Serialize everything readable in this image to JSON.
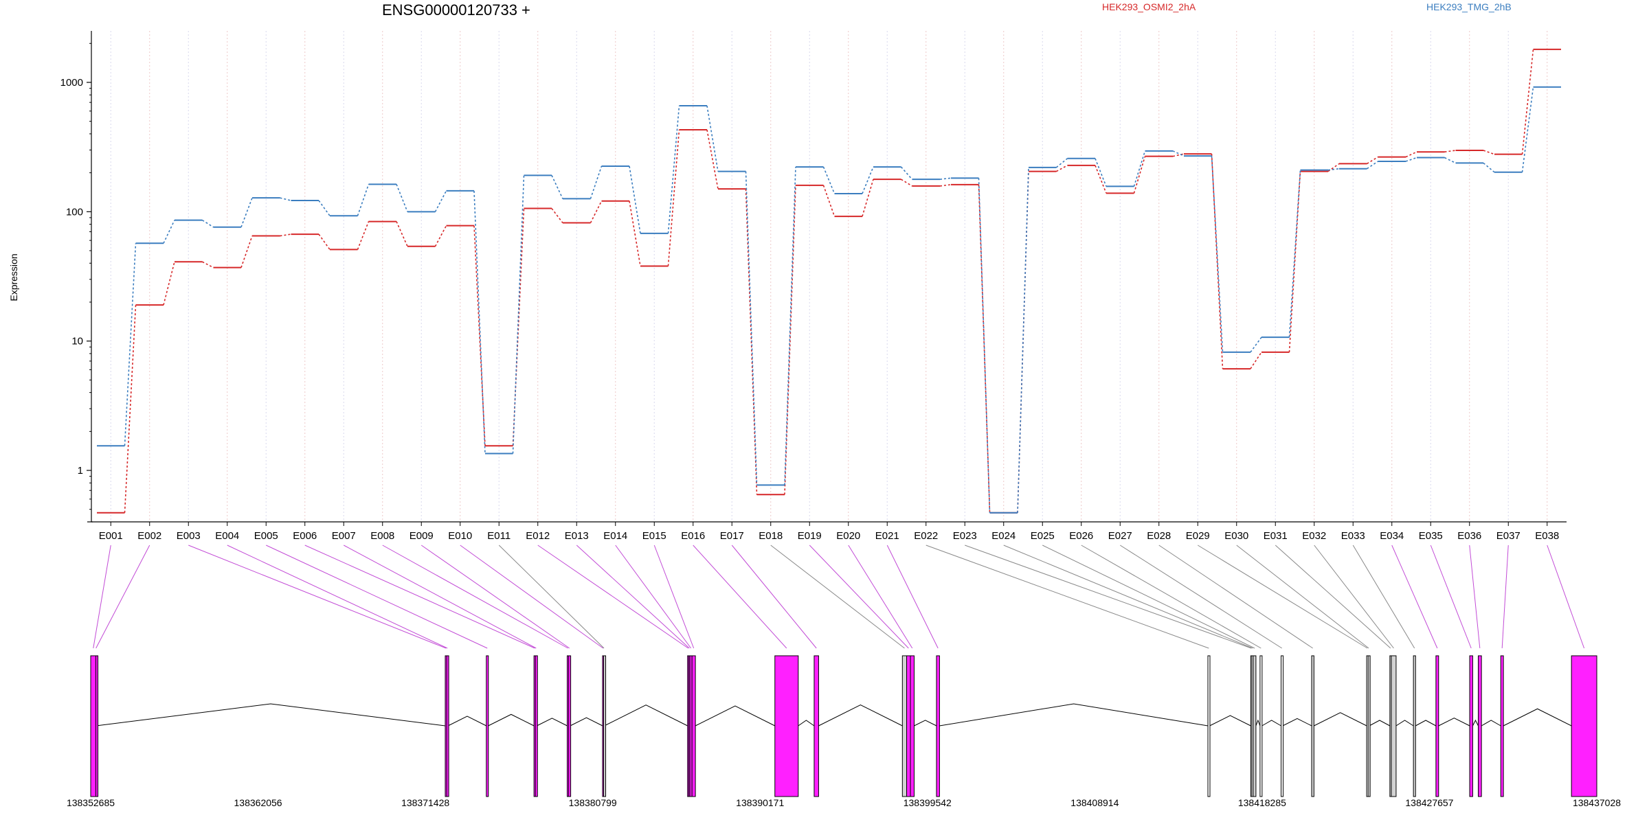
{
  "chart_data": {
    "type": "line",
    "title": "ENSG00000120733 +",
    "xlabel": "",
    "ylabel": "Expression",
    "yscale": "log",
    "ylim": [
      0.4,
      2500
    ],
    "yticks": [
      1,
      10,
      100,
      1000
    ],
    "grid": "vertical dotted at each exon",
    "legend_placement": "top",
    "categories": [
      "E001",
      "E002",
      "E003",
      "E004",
      "E005",
      "E006",
      "E007",
      "E008",
      "E009",
      "E010",
      "E011",
      "E012",
      "E013",
      "E014",
      "E015",
      "E016",
      "E017",
      "E018",
      "E019",
      "E020",
      "E021",
      "E022",
      "E023",
      "E024",
      "E025",
      "E026",
      "E027",
      "E028",
      "E029",
      "E030",
      "E031",
      "E032",
      "E033",
      "E034",
      "E035",
      "E036",
      "E037",
      "E038"
    ],
    "exon_colors": [
      "#ff20ff",
      "#ff20ff",
      "#ff20ff",
      "#ff20ff",
      "#ff20ff",
      "#ff20ff",
      "#ff20ff",
      "#ff20ff",
      "#ff20ff",
      "#ff20ff",
      "#d3d3d3",
      "#ff20ff",
      "#ff20ff",
      "#ff20ff",
      "#ff20ff",
      "#ff20ff",
      "#ff20ff",
      "#d3d3d3",
      "#ff20ff",
      "#ff20ff",
      "#ff20ff",
      "#ffffff",
      "#ffffff",
      "#ffffff",
      "#d3d3d3",
      "#ffffff",
      "#ffffff",
      "#d3d3d3",
      "#ffffff",
      "#d3d3d3",
      "#d3d3d3",
      "#d3d3d3",
      "#d3d3d3",
      "#ff20ff",
      "#ff20ff",
      "#ff20ff",
      "#ff20ff",
      "#ff20ff"
    ],
    "series": [
      {
        "name": "HEK293_OSMI2_2hA",
        "color": "#d62728",
        "values": [
          0.47,
          19,
          41,
          37,
          65,
          67,
          51,
          84,
          54,
          78,
          1.55,
          106,
          82,
          121,
          38,
          430,
          150,
          0.65,
          160,
          92,
          178,
          158,
          162,
          0.47,
          205,
          228,
          139,
          268,
          280,
          6.1,
          8.2,
          205,
          235,
          265,
          290,
          298,
          278,
          1800
        ]
      },
      {
        "name": "HEK293_TMG_2hB",
        "color": "#3a7dbf",
        "values": [
          1.55,
          57,
          86,
          76,
          128,
          122,
          93,
          163,
          100,
          145,
          1.35,
          191,
          126,
          225,
          68,
          660,
          205,
          0.77,
          222,
          138,
          222,
          178,
          182,
          0.47,
          220,
          258,
          157,
          295,
          270,
          8.2,
          10.7,
          210,
          215,
          245,
          262,
          238,
          202,
          920
        ]
      }
    ],
    "genomic_axis": {
      "ticks": [
        "138352685",
        "138362056",
        "138371428",
        "138380799",
        "138390171",
        "138399542",
        "138408914",
        "138418285",
        "138427657",
        "138437028"
      ],
      "range": [
        138352685,
        138437028
      ]
    },
    "exons": [
      {
        "id": "E001",
        "start": 138352685,
        "end": 138352975
      },
      {
        "id": "E002",
        "start": 138352975,
        "end": 138352985
      },
      {
        "id": "E003",
        "start": 138372540,
        "end": 138372620
      },
      {
        "id": "E004",
        "start": 138372620,
        "end": 138372700
      },
      {
        "id": "E005",
        "start": 138374840,
        "end": 138374950
      },
      {
        "id": "E006",
        "start": 138377510,
        "end": 138377590
      },
      {
        "id": "E007",
        "start": 138377590,
        "end": 138377670
      },
      {
        "id": "E008",
        "start": 138379370,
        "end": 138379450
      },
      {
        "id": "E009",
        "start": 138379450,
        "end": 138379540
      },
      {
        "id": "E010",
        "start": 138381350,
        "end": 138381410
      },
      {
        "id": "E011",
        "start": 138381410,
        "end": 138381450
      },
      {
        "id": "E012",
        "start": 138386110,
        "end": 138386180
      },
      {
        "id": "E013",
        "start": 138386180,
        "end": 138386240
      },
      {
        "id": "E014",
        "start": 138386240,
        "end": 138386360
      },
      {
        "id": "E015",
        "start": 138386360,
        "end": 138386550
      },
      {
        "id": "E016",
        "start": 138391000,
        "end": 138392310
      },
      {
        "id": "E017",
        "start": 138393200,
        "end": 138393450
      },
      {
        "id": "E018",
        "start": 138398140,
        "end": 138398380
      },
      {
        "id": "E019",
        "start": 138398380,
        "end": 138398590
      },
      {
        "id": "E020",
        "start": 138398590,
        "end": 138398800
      },
      {
        "id": "E021",
        "start": 138400050,
        "end": 138400220
      },
      {
        "id": "E022",
        "start": 138415250,
        "end": 138415350
      },
      {
        "id": "E023",
        "start": 138417650,
        "end": 138417710
      },
      {
        "id": "E024",
        "start": 138417710,
        "end": 138417790
      },
      {
        "id": "E025",
        "start": 138417790,
        "end": 138417940
      },
      {
        "id": "E026",
        "start": 138418170,
        "end": 138418280
      },
      {
        "id": "E027",
        "start": 138419350,
        "end": 138419440
      },
      {
        "id": "E028",
        "start": 138421060,
        "end": 138421190
      },
      {
        "id": "E029",
        "start": 138424140,
        "end": 138424220
      },
      {
        "id": "E030",
        "start": 138424220,
        "end": 138424290
      },
      {
        "id": "E031",
        "start": 138425440,
        "end": 138425520
      },
      {
        "id": "E032",
        "start": 138425520,
        "end": 138425790
      },
      {
        "id": "E033",
        "start": 138426760,
        "end": 138426880
      },
      {
        "id": "E034",
        "start": 138428020,
        "end": 138428170
      },
      {
        "id": "E035",
        "start": 138429910,
        "end": 138430080
      },
      {
        "id": "E036",
        "start": 138430390,
        "end": 138430570
      },
      {
        "id": "E037",
        "start": 138431650,
        "end": 138431800
      },
      {
        "id": "E038",
        "start": 138435610,
        "end": 138437028
      }
    ]
  }
}
